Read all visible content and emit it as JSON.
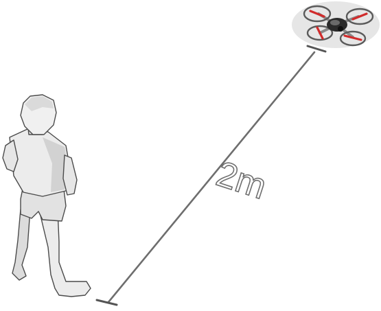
{
  "distance_label": "2m",
  "colors": {
    "background": "#ffffff",
    "figure_fill": "#ececec",
    "figure_shade": "#c9c9c9",
    "figure_outline": "#4a4a4a",
    "measure_line": "#6e6e6e",
    "label_fill": "#ffffff",
    "label_stroke": "#6f6f6f",
    "drone_backdrop": "#e6e6e6",
    "drone_body": "#2b2b2b",
    "drone_frame": "#9a9a9a",
    "propeller": "#d12b2b"
  },
  "icons": {
    "person": "person-figure-icon",
    "drone": "quadcopter-drone-icon"
  }
}
